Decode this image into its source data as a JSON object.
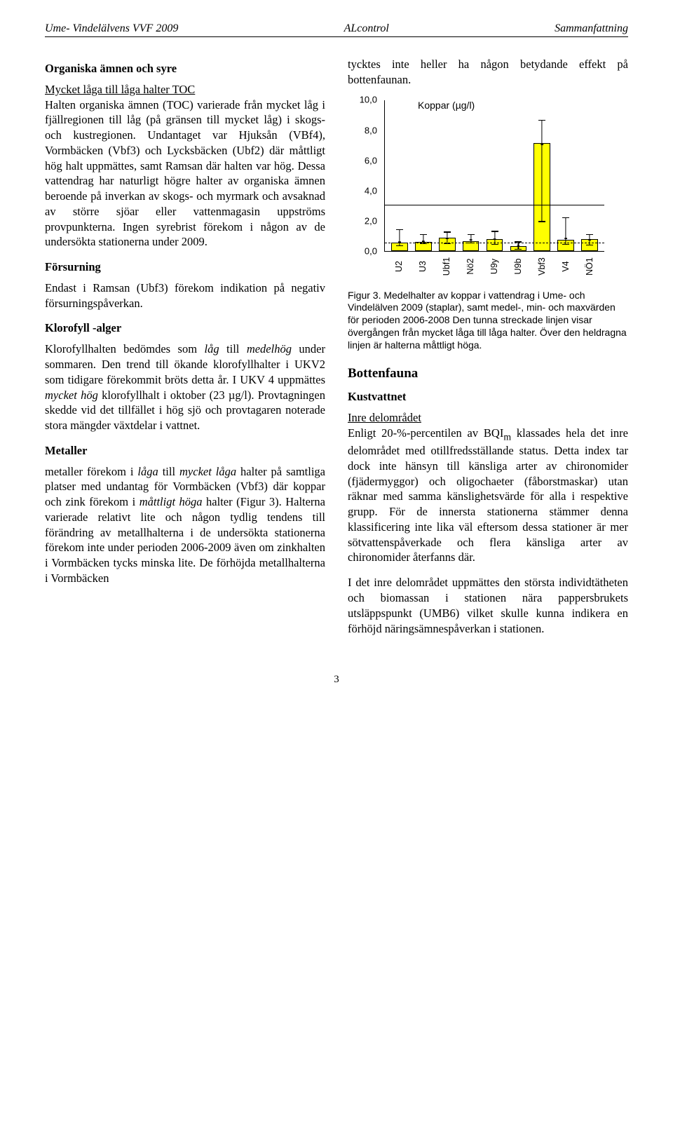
{
  "header": {
    "left": "Ume- Vindelälvens VVF 2009",
    "center": "ALcontrol",
    "right": "Sammanfattning"
  },
  "left_column": {
    "sec1_title": "Organiska ämnen och syre",
    "p1_u": "Mycket låga till låga halter TOC",
    "p1_rest": "Halten organiska ämnen (TOC) varierade från mycket låg i fjällregionen till låg (på gränsen till mycket låg) i skogs- och kustregionen. Undantaget var Hjuksån (VBf4), Vormbäcken (Vbf3) och Lycksbäcken (Ubf2) där måttligt hög halt uppmättes, samt Ramsan där halten var hög. Dessa vattendrag har naturligt högre halter av organiska ämnen beroende på inverkan av skogs- och myrmark och avsaknad av större sjöar eller vattenmagasin uppströms provpunkterna. Ingen syrebrist förekom i någon av de undersökta stationerna under 2009.",
    "sec2_title": "Försurning",
    "p2": "Endast i Ramsan (Ubf3) förekom indikation på negativ försurningspåverkan.",
    "sec3_title": "Klorofyll -alger",
    "p3a": "Klorofyllhalten bedömdes som ",
    "p3a_i": "låg",
    "p3a2": " till ",
    "p3a_i2": "medelhög",
    "p3a3": " under sommaren. Den trend till ökande klorofyllhalter i UKV2 som tidigare förekommit bröts detta år. I UKV 4 uppmättes ",
    "p3a_i3": "mycket hög",
    "p3a4": " klorofyllhalt i oktober (23 µg/l). Provtagningen skedde vid det tillfället i hög sjö och provtagaren noterade stora mängder växtdelar i vattnet.",
    "sec4_title": "Metaller",
    "p4a": "metaller förekom i ",
    "p4a_i1": "låga",
    "p4a2": " till ",
    "p4a_i2": "mycket låga",
    "p4a3": " halter på samtliga platser med undantag för Vormbäcken (Vbf3) där koppar och zink förekom i ",
    "p4a_i3": "måttligt höga",
    "p4a4": " halter (Figur 3). Halterna varierade relativt lite och någon tydlig tendens till förändring av metallhalterna i de undersökta stationerna förekom inte under perioden 2006-2009 även om zinkhalten i Vormbäcken tycks minska lite. De förhöjda metallhalterna i Vormbäcken"
  },
  "right_column": {
    "top_p": "tycktes inte heller ha någon betydande effekt på bottenfaunan.",
    "chart": {
      "type": "bar-with-whiskers",
      "title": "Koppar (µg/l)",
      "categories": [
        "U2",
        "U3",
        "Ubf1",
        "Nö2",
        "U9y",
        "U9b",
        "Vbf3",
        "V4",
        "NÖ1"
      ],
      "bar_values": [
        0.55,
        0.6,
        0.85,
        0.65,
        0.75,
        0.3,
        7.1,
        0.7,
        0.75
      ],
      "min_values": [
        0.3,
        0.45,
        0.45,
        0.5,
        0.4,
        0.05,
        1.9,
        0.4,
        0.35
      ],
      "max_values": [
        1.35,
        1.05,
        1.2,
        1.05,
        1.25,
        0.55,
        8.6,
        2.15,
        1.05
      ],
      "mean_values": [
        0.6,
        0.62,
        0.8,
        0.7,
        0.75,
        0.3,
        7.0,
        0.8,
        0.7
      ],
      "bar_color": "#ffff00",
      "border_color": "#000000",
      "ylim": [
        0,
        10
      ],
      "ytick_step": 2,
      "threshold_dashed": 0.5,
      "threshold_solid": 3.0,
      "background": "#ffffff"
    },
    "caption": "Figur 3. Medelhalter av koppar i vattendrag i Ume- och Vindelälven 2009 (staplar), samt medel-, min- och maxvärden för perioden 2006-2008 Den tunna streckade linjen visar övergången från mycket låga till låga halter. Över den heldragna linjen är halterna måttligt höga.",
    "sec_botten": "Bottenfauna",
    "sec_kust": "Kustvattnet",
    "inre_u": "Inre delområdet",
    "p_inre1a": "Enligt 20-%-percentilen av BQI",
    "p_inre1sub": "m",
    "p_inre1b": " klassades hela det inre delområdet med otillfredsställande status. Detta index tar dock inte hänsyn till känsliga arter av chironomider (fjädermyggor) och oligochaeter (fåborstmaskar) utan räknar med samma känslighetsvärde för alla i respektive grupp. För de innersta stationerna stämmer denna klassificering inte lika väl eftersom dessa stationer är mer sötvattenspåverkade och flera känsliga arter av chironomider återfanns där.",
    "p_inre2": "I det inre delområdet uppmättes den största individtätheten och biomassan i stationen nära pappersbrukets utsläppspunkt (UMB6) vilket skulle kunna indikera en förhöjd näringsämnespåverkan i stationen."
  },
  "pagenum": "3"
}
